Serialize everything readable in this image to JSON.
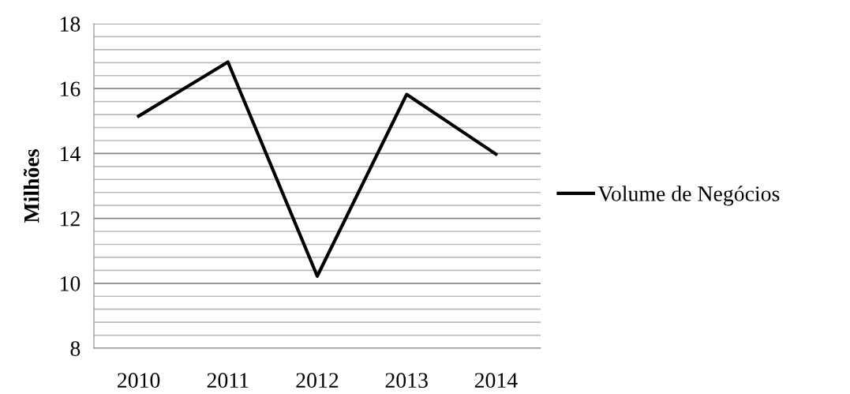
{
  "chart_data": {
    "type": "line",
    "ylabel": "Milhões",
    "categories": [
      "2010",
      "2011",
      "2012",
      "2013",
      "2014"
    ],
    "series": [
      {
        "name": "Volume de Negócios",
        "color": "#000000",
        "values": [
          15.15,
          16.82,
          10.22,
          15.82,
          13.98
        ]
      }
    ],
    "ylim": [
      8,
      18
    ],
    "yticks": [
      8,
      {
        "value": 8.4,
        "label": null
      },
      {
        "value": 8.8,
        "label": null
      },
      {
        "value": 9.2,
        "label": null
      },
      {
        "value": 9.6,
        "label": null
      },
      10,
      {
        "value": 10.4,
        "label": null
      },
      {
        "value": 10.8,
        "label": null
      },
      {
        "value": 11.2,
        "label": null
      },
      {
        "value": 11.6,
        "label": null
      },
      12,
      {
        "value": 12.4,
        "label": null
      },
      {
        "value": 12.8,
        "label": null
      },
      {
        "value": 13.2,
        "label": null
      },
      {
        "value": 13.6,
        "label": null
      },
      14,
      {
        "value": 14.4,
        "label": null
      },
      {
        "value": 14.8,
        "label": null
      },
      {
        "value": 15.2,
        "label": null
      },
      {
        "value": 15.6,
        "label": null
      },
      16,
      {
        "value": 16.4,
        "label": null
      },
      {
        "value": 16.8,
        "label": null
      },
      {
        "value": 17.2,
        "label": null
      },
      {
        "value": 17.6,
        "label": null
      },
      18
    ],
    "grid": "y",
    "legend": "right",
    "marker": "none",
    "line_style": "solid"
  }
}
